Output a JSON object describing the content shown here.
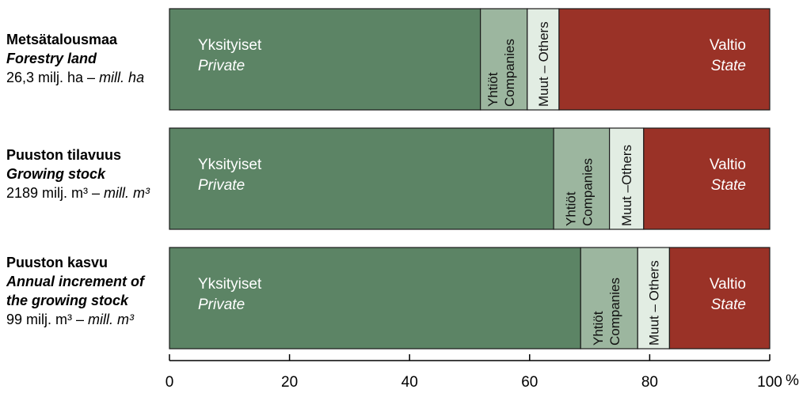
{
  "chart_data": {
    "type": "bar",
    "orientation": "horizontal",
    "stacked": true,
    "xlim": [
      0,
      100
    ],
    "x_ticks": [
      "0",
      "20",
      "40",
      "60",
      "80",
      "100"
    ],
    "x_unit": "%",
    "categories": [
      {
        "name_fi": "Metsätalousmaa",
        "name_en": "Forestry land",
        "total_prefix": "26,3 milj. ha – ",
        "total_unit_en": "mill. ha"
      },
      {
        "name_fi": "Puuston tilavuus",
        "name_en": "Growing stock",
        "total_prefix": "2189 milj. m³ – ",
        "total_unit_en": "mill. m³"
      },
      {
        "name_fi": "Puuston kasvu",
        "name_en": "Annual increment of",
        "name_en_2": "the growing stock",
        "total_prefix": "99 milj. m³ – ",
        "total_unit_en": "mill. m³"
      }
    ],
    "series": [
      {
        "name_fi": "Yksityiset",
        "name_en": "Private",
        "color": "#5c8465",
        "values": [
          51.8,
          64.0,
          68.5
        ]
      },
      {
        "name_fi": "Yhtiöt",
        "name_en": "Companies",
        "color": "#9cb69f",
        "values": [
          7.8,
          9.3,
          9.5
        ]
      },
      {
        "name_fi": "Muut",
        "name_en": "Others",
        "color": "#e2ede3",
        "values": [
          5.3,
          5.7,
          5.3
        ]
      },
      {
        "name_fi": "Valtio",
        "name_en": "State",
        "color": "#9a3227",
        "values": [
          35.1,
          21.0,
          16.7
        ]
      }
    ],
    "seg_labels": [
      [
        "Muut – Others",
        "Muut –Others",
        "Muut – Others"
      ]
    ]
  }
}
